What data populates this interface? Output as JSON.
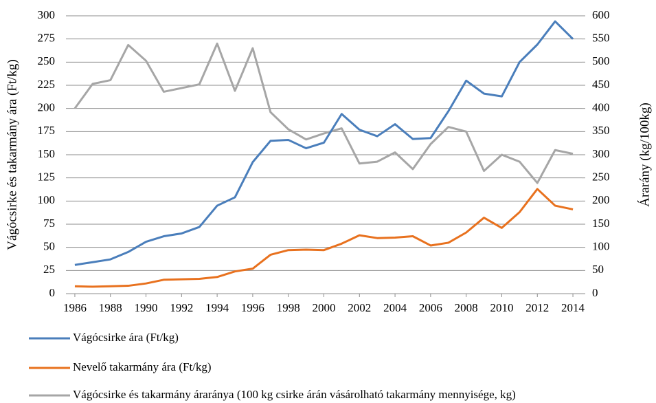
{
  "chart_data": {
    "type": "line",
    "y_label": "Vágócsirke és takarmány ára (Ft/kg)",
    "y2_label": "Árarány (kg/100kg)",
    "x": [
      1986,
      1987,
      1988,
      1989,
      1990,
      1991,
      1992,
      1993,
      1994,
      1995,
      1996,
      1997,
      1998,
      1999,
      2000,
      2001,
      2002,
      2003,
      2004,
      2005,
      2006,
      2007,
      2008,
      2009,
      2010,
      2011,
      2012,
      2013,
      2014
    ],
    "xlim": [
      1985.5,
      2014.5
    ],
    "xticks": [
      1986,
      1988,
      1990,
      1992,
      1994,
      1996,
      1998,
      2000,
      2002,
      2004,
      2006,
      2008,
      2010,
      2012,
      2014
    ],
    "ylim": [
      0,
      300
    ],
    "yticks": [
      0,
      25,
      50,
      75,
      100,
      125,
      150,
      175,
      200,
      225,
      250,
      275,
      300
    ],
    "y2lim": [
      0,
      600
    ],
    "y2ticks": [
      0,
      50,
      100,
      150,
      200,
      250,
      300,
      350,
      400,
      450,
      500,
      550,
      600
    ],
    "grid": true,
    "legend": "bottom",
    "series": [
      {
        "name": "Vágócsirke ára (Ft/kg)",
        "color": "#4a7ebb",
        "values": [
          31,
          34,
          37,
          45,
          56,
          62,
          65,
          72,
          95,
          104,
          142,
          165,
          166,
          157,
          163,
          194,
          177,
          170,
          183,
          167,
          168,
          197,
          230,
          216,
          213,
          250,
          269,
          294,
          275
        ]
      },
      {
        "name": "Nevelő takarmány ára (Ft/kg)",
        "color": "#e8711e",
        "values": [
          8,
          7.5,
          8,
          8.5,
          11,
          15,
          15.5,
          16,
          18,
          24,
          27,
          42,
          47,
          47.5,
          47,
          54,
          63,
          60,
          60.5,
          62,
          52,
          55,
          66,
          82,
          71,
          88,
          113,
          95,
          91
        ]
      },
      {
        "name": "Vágócsirke és takarmány ára­ránya (100 kg csirke árán vásárolható takarmány mennyisége, kg)",
        "color": "#a6a6a6",
        "axis": "y2",
        "values": [
          400,
          453,
          461,
          537,
          503,
          436,
          444,
          452,
          540,
          438,
          530,
          392,
          355,
          333,
          346,
          357,
          281,
          285,
          305,
          269,
          323,
          360,
          350,
          265,
          300,
          285,
          239,
          310,
          302
        ]
      }
    ]
  }
}
